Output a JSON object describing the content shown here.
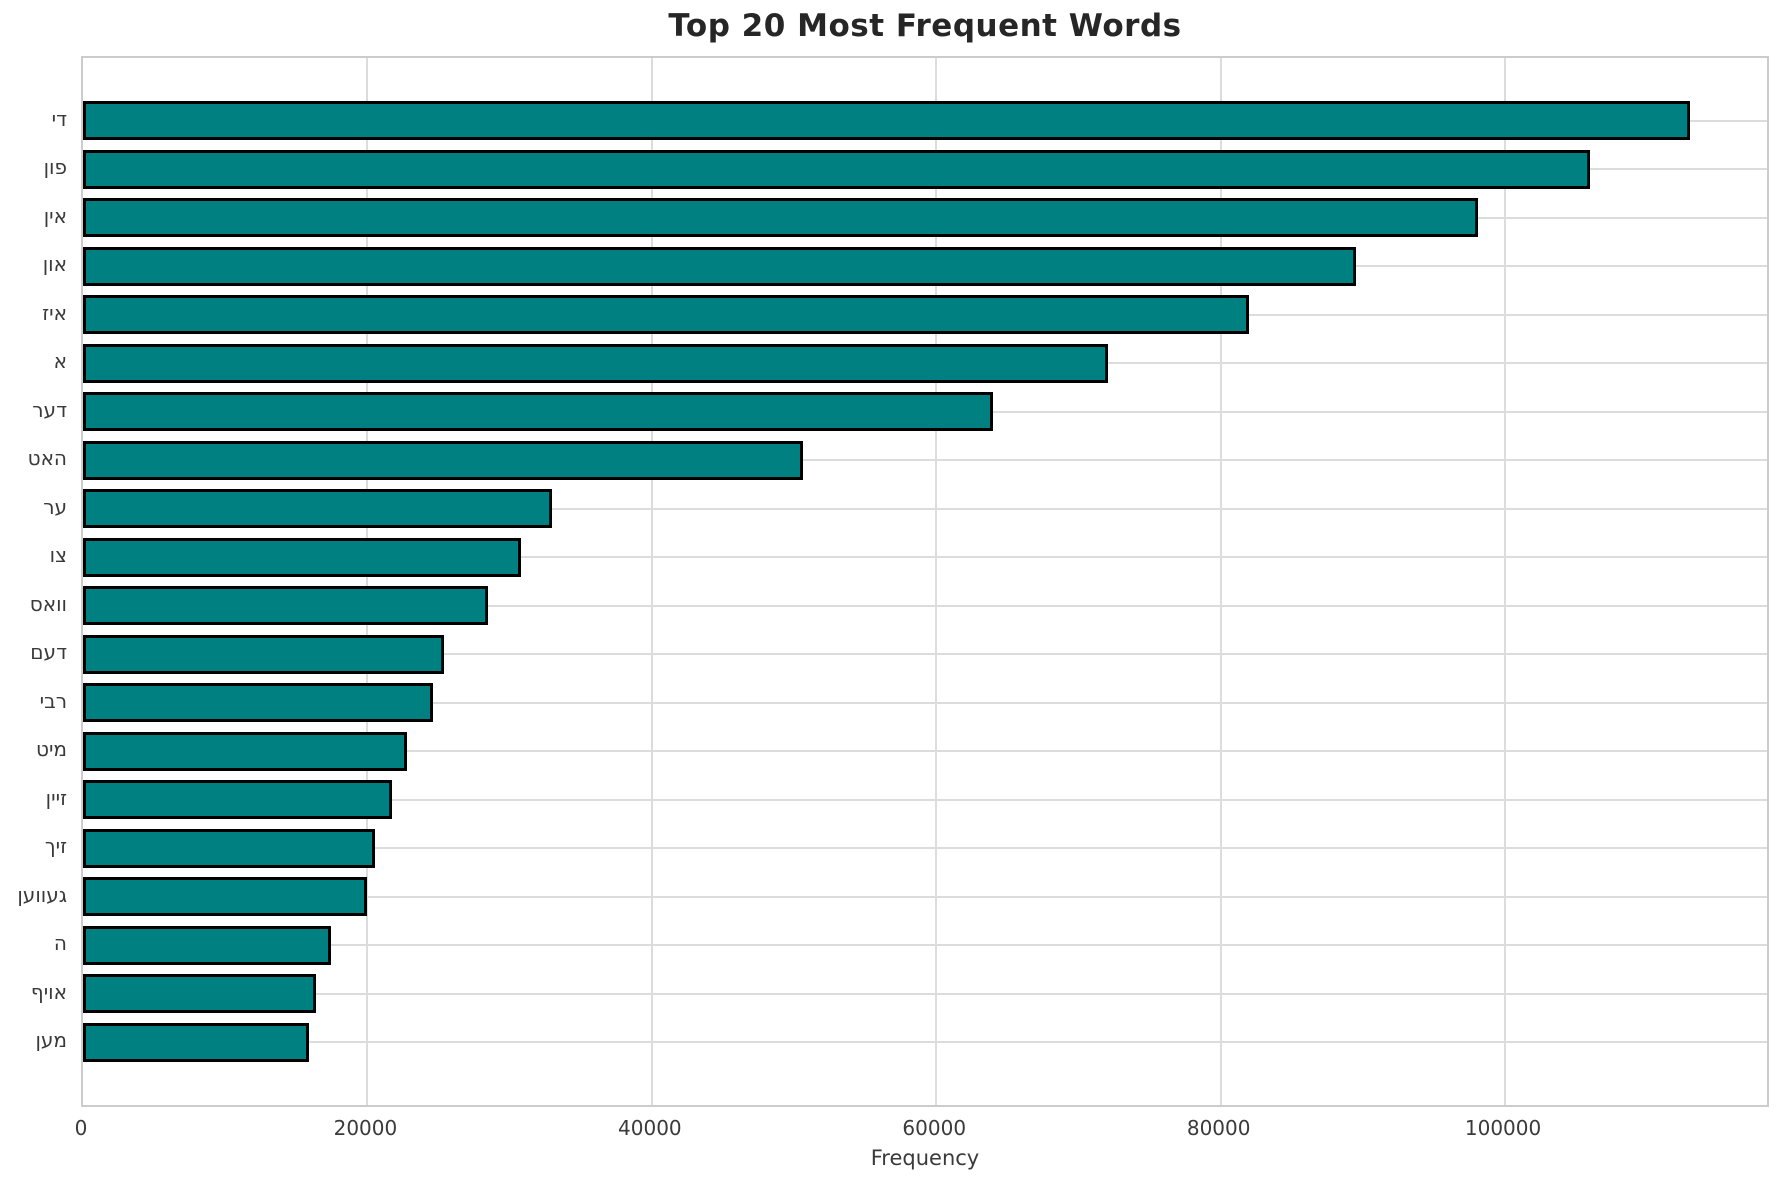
{
  "chart_data": {
    "type": "bar",
    "orientation": "horizontal",
    "title": "Top 20 Most Frequent Words",
    "xlabel": "Frequency",
    "ylabel": "",
    "categories": [
      "די",
      "פון",
      "אין",
      "און",
      "איז",
      "א",
      "דער",
      "האט",
      "ער",
      "צו",
      "וואס",
      "דעם",
      "רבי",
      "מיט",
      "זיין",
      "זיך",
      "געווען",
      "ה",
      "אויף",
      "מען"
    ],
    "values": [
      113000,
      106000,
      98100,
      89500,
      82000,
      72100,
      64000,
      50600,
      33000,
      30800,
      28500,
      25400,
      24600,
      22800,
      21700,
      20500,
      19950,
      17450,
      16400,
      15900
    ],
    "x_ticks": [
      0,
      20000,
      40000,
      60000,
      80000,
      100000
    ],
    "x_tick_labels": [
      "0",
      "20000",
      "40000",
      "60000",
      "80000",
      "100000"
    ],
    "xlim": [
      0,
      118700
    ],
    "grid": true,
    "legend": null,
    "colors": {
      "bar_fill": "#008080",
      "bar_edge": "#000000",
      "grid_line": "#dcdcdc",
      "spine": "#cccccc",
      "tick_text": "#3a3a3a",
      "title_text": "#262626",
      "background": "#ffffff"
    }
  }
}
